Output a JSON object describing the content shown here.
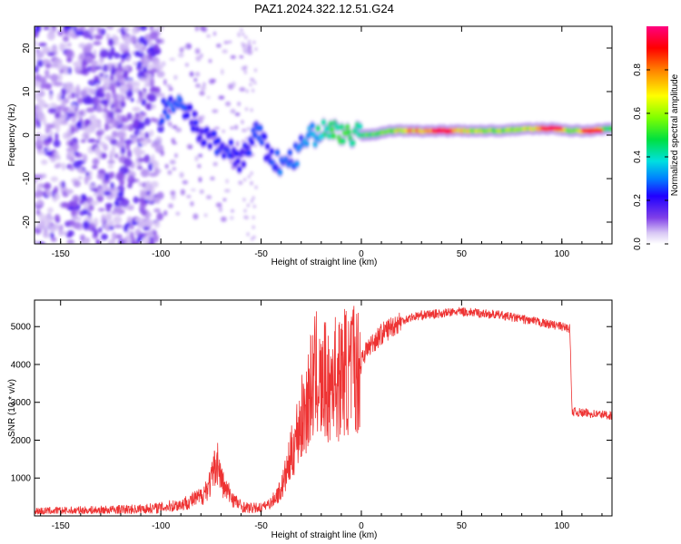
{
  "title": "PAZ1.2024.322.12.51.G24",
  "chart_data": [
    {
      "type": "heatmap",
      "xlabel": "Height of straight line (km)",
      "ylabel": "Frequency (Hz)",
      "xlim": [
        -163,
        125
      ],
      "ylim": [
        -25,
        25
      ],
      "xticks": [
        "-150",
        "-100",
        "-50",
        "0",
        "50",
        "100"
      ],
      "xtick_values": [
        -150,
        -100,
        -50,
        0,
        50,
        100
      ],
      "yticks": [
        "20",
        "10",
        "0",
        "-10",
        "-20"
      ],
      "ytick_values": [
        20,
        10,
        0,
        -10,
        -20
      ],
      "colorbar": {
        "label": "Normalized spectral amplitude",
        "range": [
          0,
          1
        ],
        "ticks": [
          "0.0",
          "0.2",
          "0.4",
          "0.6",
          "0.8"
        ],
        "tick_values": [
          0,
          0.2,
          0.4,
          0.6,
          0.8
        ],
        "colormap": "rainbow"
      },
      "ridge": [
        {
          "x": -100,
          "y": 5,
          "amp": 0.25
        },
        {
          "x": -92,
          "y": 7,
          "amp": 0.3
        },
        {
          "x": -85,
          "y": 4,
          "amp": 0.25
        },
        {
          "x": -80,
          "y": 0,
          "amp": 0.2
        },
        {
          "x": -72,
          "y": -2,
          "amp": 0.25
        },
        {
          "x": -65,
          "y": -4,
          "amp": 0.25
        },
        {
          "x": -60,
          "y": -6,
          "amp": 0.2
        },
        {
          "x": -52,
          "y": 1,
          "amp": 0.3
        },
        {
          "x": -47,
          "y": -4,
          "amp": 0.25
        },
        {
          "x": -40,
          "y": -7,
          "amp": 0.3
        },
        {
          "x": -33,
          "y": -5,
          "amp": 0.3
        },
        {
          "x": -27,
          "y": -1,
          "amp": 0.35
        },
        {
          "x": -20,
          "y": 1,
          "amp": 0.45
        },
        {
          "x": -12,
          "y": 1,
          "amp": 0.55
        },
        {
          "x": -5,
          "y": 0,
          "amp": 0.5
        },
        {
          "x": 5,
          "y": 0,
          "amp": 0.55
        },
        {
          "x": 15,
          "y": 1,
          "amp": 0.65
        },
        {
          "x": 25,
          "y": 1,
          "amp": 0.8
        },
        {
          "x": 40,
          "y": 1,
          "amp": 0.95
        },
        {
          "x": 55,
          "y": 1,
          "amp": 0.7
        },
        {
          "x": 70,
          "y": 1,
          "amp": 0.6
        },
        {
          "x": 85,
          "y": 1.5,
          "amp": 0.7
        },
        {
          "x": 95,
          "y": 1.5,
          "amp": 0.95
        },
        {
          "x": 105,
          "y": 1,
          "amp": 0.6
        },
        {
          "x": 115,
          "y": 1,
          "amp": 0.9
        },
        {
          "x": 125,
          "y": 1.5,
          "amp": 0.5
        }
      ]
    },
    {
      "type": "line",
      "xlabel": "Height of straight line (km)",
      "ylabel": "SNR (10 * v/v)",
      "xlim": [
        -163,
        125
      ],
      "ylim": [
        0,
        5700
      ],
      "xticks": [
        "-150",
        "-100",
        "-50",
        "0",
        "50",
        "100"
      ],
      "xtick_values": [
        -150,
        -100,
        -50,
        0,
        50,
        100
      ],
      "yticks": [
        "1000",
        "2000",
        "3000",
        "4000",
        "5000"
      ],
      "ytick_values": [
        1000,
        2000,
        3000,
        4000,
        5000
      ],
      "color": "#ee3333",
      "series": [
        {
          "x": [
            -163,
            -150,
            -130,
            -110,
            -100,
            -90,
            -80,
            -75,
            -72,
            -70,
            -68,
            -66,
            -63,
            -60,
            -55,
            -50,
            -45,
            -40,
            -37,
            -34,
            -31,
            -28,
            -25,
            -22,
            -20,
            -18,
            -16,
            -14,
            -12,
            -10,
            -8,
            -6,
            -4,
            -2,
            0,
            3,
            6,
            10,
            15,
            20,
            25,
            30,
            40,
            50,
            60,
            70,
            80,
            90,
            100,
            104,
            105,
            106,
            110,
            115,
            120,
            125
          ],
          "y": [
            120,
            130,
            150,
            180,
            220,
            300,
            500,
            900,
            1500,
            1000,
            700,
            600,
            400,
            250,
            200,
            220,
            350,
            700,
            1200,
            1800,
            2400,
            2800,
            3400,
            3800,
            3300,
            3600,
            3200,
            3900,
            3500,
            3700,
            3900,
            3600,
            4100,
            3800,
            4200,
            4400,
            4600,
            4800,
            5000,
            5150,
            5250,
            5300,
            5350,
            5400,
            5350,
            5300,
            5200,
            5100,
            5000,
            4950,
            2800,
            2750,
            2720,
            2700,
            2680,
            2650
          ]
        }
      ]
    }
  ]
}
